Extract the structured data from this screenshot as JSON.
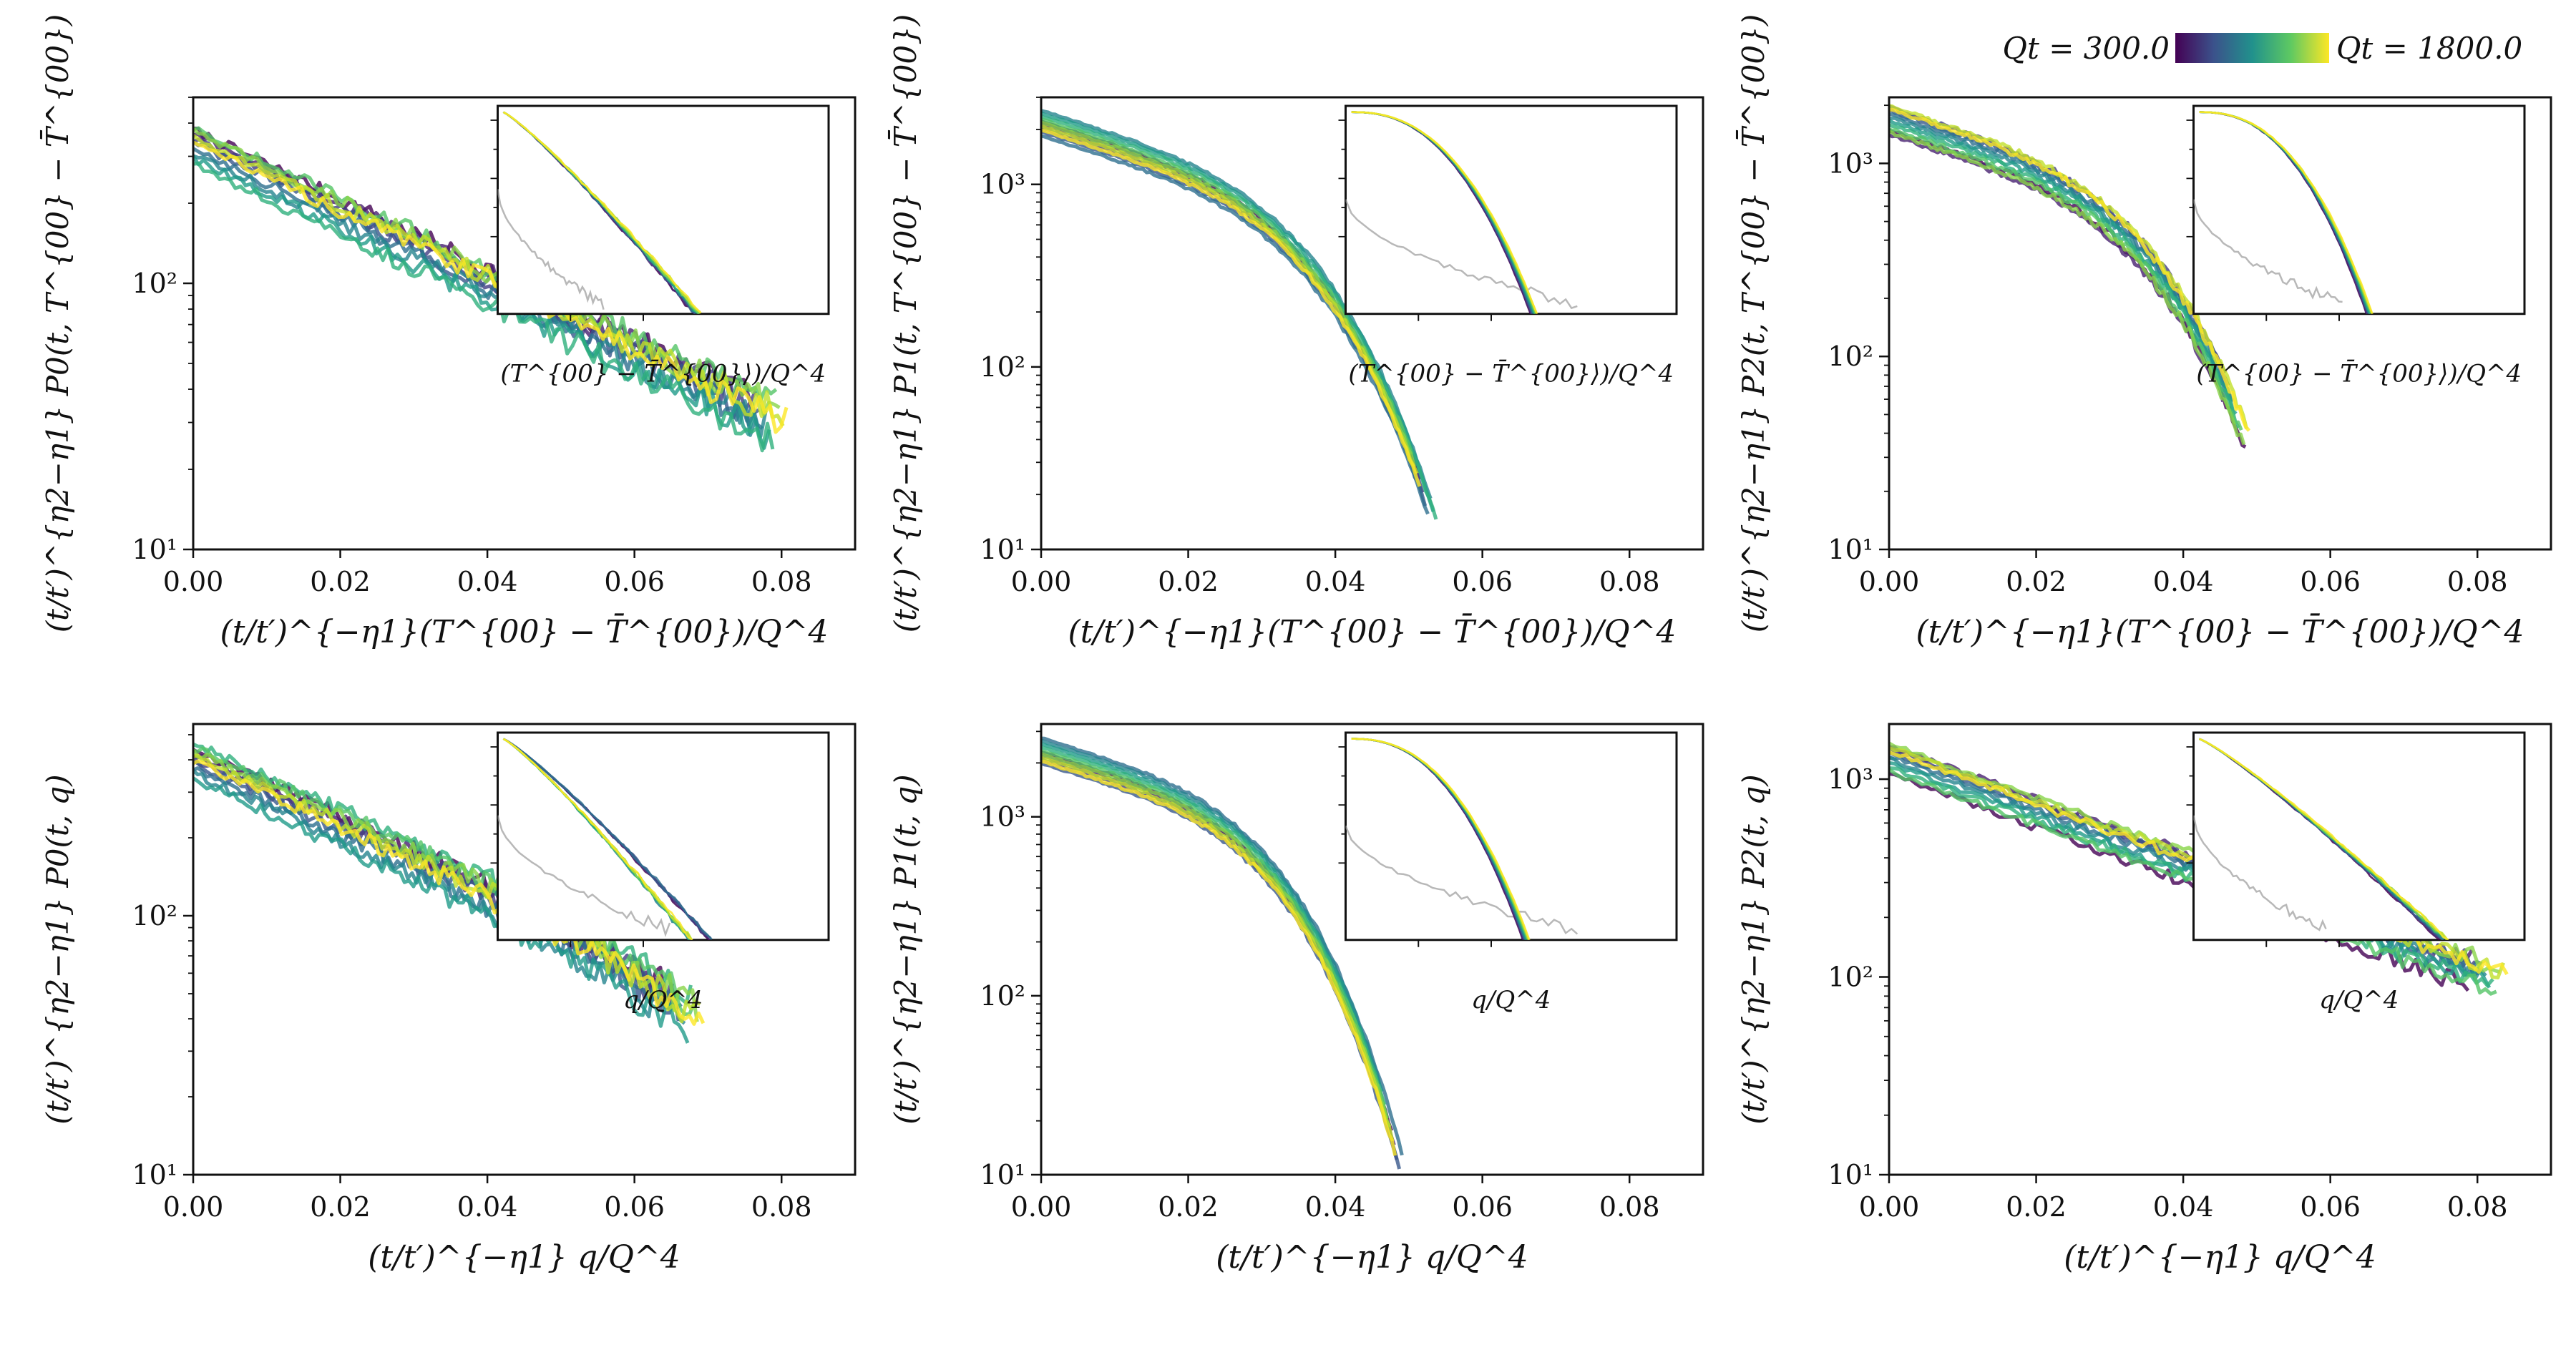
{
  "colorbar": {
    "min_label": "Qt = 300.0",
    "max_label": "Qt = 1800.0",
    "min": 300.0,
    "max": 1800.0,
    "colormap": "viridis"
  },
  "chart_data": [
    {
      "type": "line",
      "panel": "top-left",
      "xlabel": "(t/t′)^{−η1}(T^{00} − T̄^{00})/Q^4",
      "ylabel": "(t/t′)^{η2−η1} P0(t, T^{00} − T̄^{00})",
      "xlim": [
        0,
        0.09
      ],
      "ylim": [
        10,
        500
      ],
      "yscale": "log",
      "xticks": [
        "0.00",
        "0.02",
        "0.04",
        "0.06",
        "0.08"
      ],
      "yticks": [
        "10^1",
        "10^2"
      ],
      "inset_xlabel": "(T^{00} − T̄^{00}⟩)/Q^4",
      "series_note": "curves for Qt from 300.0 to 1800.0",
      "y0": 330,
      "decay": 0.033,
      "curv": 0.0,
      "end": 0.08,
      "noise": 0.08,
      "inset": {
        "xe": 0.6,
        "gray_xe": 0.32,
        "gray_y0": 0.4
      }
    },
    {
      "type": "line",
      "panel": "top-middle",
      "xlabel": "(t/t′)^{−η1}(T^{00} − T̄^{00})/Q^4",
      "ylabel": "(t/t′)^{η2−η1} P1(t, T^{00} − T̄^{00})",
      "xlim": [
        0,
        0.09
      ],
      "ylim": [
        10,
        3000
      ],
      "yscale": "log",
      "xticks": [
        "0.00",
        "0.02",
        "0.04",
        "0.06",
        "0.08"
      ],
      "yticks": [
        "10^1",
        "10^2",
        "10^3"
      ],
      "inset_xlabel": "(T^{00} − T̄^{00}⟩)/Q^4",
      "series_note": "curves for Qt from 300.0 to 1800.0",
      "y0": 2200,
      "decay": 0.033,
      "curv": 0.6,
      "end": 0.053,
      "noise": 0.018,
      "inset": {
        "xe": 0.55,
        "gray_xe": 0.7,
        "gray_y0": 0.45
      }
    },
    {
      "type": "line",
      "panel": "top-right",
      "xlabel": "(t/t′)^{−η1}(T^{00} − T̄^{00})/Q^4",
      "ylabel": "(t/t′)^{η2−η1} P2(t, T^{00} − T̄^{00})",
      "xlim": [
        0,
        0.09
      ],
      "ylim": [
        10,
        2200
      ],
      "yscale": "log",
      "xticks": [
        "0.00",
        "0.02",
        "0.04",
        "0.06",
        "0.08"
      ],
      "yticks": [
        "10^1",
        "10^2",
        "10^3"
      ],
      "inset_xlabel": "(T^{00} − T̄^{00}⟩)/Q^4",
      "series_note": "curves for Qt from 300.0 to 1800.0",
      "y0": 1700,
      "decay": 0.034,
      "curv": 0.45,
      "end": 0.049,
      "noise": 0.035,
      "inset": {
        "xe": 0.5,
        "gray_xe": 0.45,
        "gray_y0": 0.45
      }
    },
    {
      "type": "line",
      "panel": "bottom-left",
      "xlabel": "(t/t′)^{−η1} q/Q^4",
      "ylabel": "(t/t′)^{η2−η1} P0(t, q)",
      "xlim": [
        0,
        0.09
      ],
      "ylim": [
        10,
        550
      ],
      "yscale": "log",
      "xticks": [
        "0.00",
        "0.02",
        "0.04",
        "0.06",
        "0.08"
      ],
      "yticks": [
        "10^1",
        "10^2"
      ],
      "inset_xlabel": "q/Q^4",
      "series_note": "curves for Qt from 300.0 to 1800.0",
      "y0": 400,
      "decay": 0.034,
      "curv": 0.05,
      "end": 0.068,
      "noise": 0.08,
      "inset": {
        "xe": 0.6,
        "gray_xe": 0.52,
        "gray_y0": 0.4
      }
    },
    {
      "type": "line",
      "panel": "bottom-middle",
      "xlabel": "(t/t′)^{−η1} q/Q^4",
      "ylabel": "(t/t′)^{η2−η1} P1(t, q)",
      "xlim": [
        0,
        0.09
      ],
      "ylim": [
        10,
        3300
      ],
      "yscale": "log",
      "xticks": [
        "0.00",
        "0.02",
        "0.04",
        "0.06",
        "0.08"
      ],
      "yticks": [
        "10^1",
        "10^2",
        "10^3"
      ],
      "inset_xlabel": "q/Q^4",
      "series_note": "curves for Qt from 300.0 to 1800.0",
      "y0": 2400,
      "decay": 0.033,
      "curv": 0.7,
      "end": 0.049,
      "noise": 0.018,
      "inset": {
        "xe": 0.55,
        "gray_xe": 0.7,
        "gray_y0": 0.45
      }
    },
    {
      "type": "line",
      "panel": "bottom-right",
      "xlabel": "(t/t′)^{−η1} q/Q^4",
      "ylabel": "(t/t′)^{η2−η1} P2(t, q)",
      "xlim": [
        0,
        0.09
      ],
      "ylim": [
        10,
        1900
      ],
      "yscale": "log",
      "xticks": [
        "0.00",
        "0.02",
        "0.04",
        "0.06",
        "0.08"
      ],
      "yticks": [
        "10^1",
        "10^2",
        "10^3"
      ],
      "inset_xlabel": "q/Q^4",
      "series_note": "curves for Qt from 300.0 to 1800.0",
      "y0": 1300,
      "decay": 0.032,
      "curv": 0.0,
      "end": 0.084,
      "noise": 0.06,
      "inset": {
        "xe": 0.75,
        "gray_xe": 0.4,
        "gray_y0": 0.4
      }
    }
  ]
}
